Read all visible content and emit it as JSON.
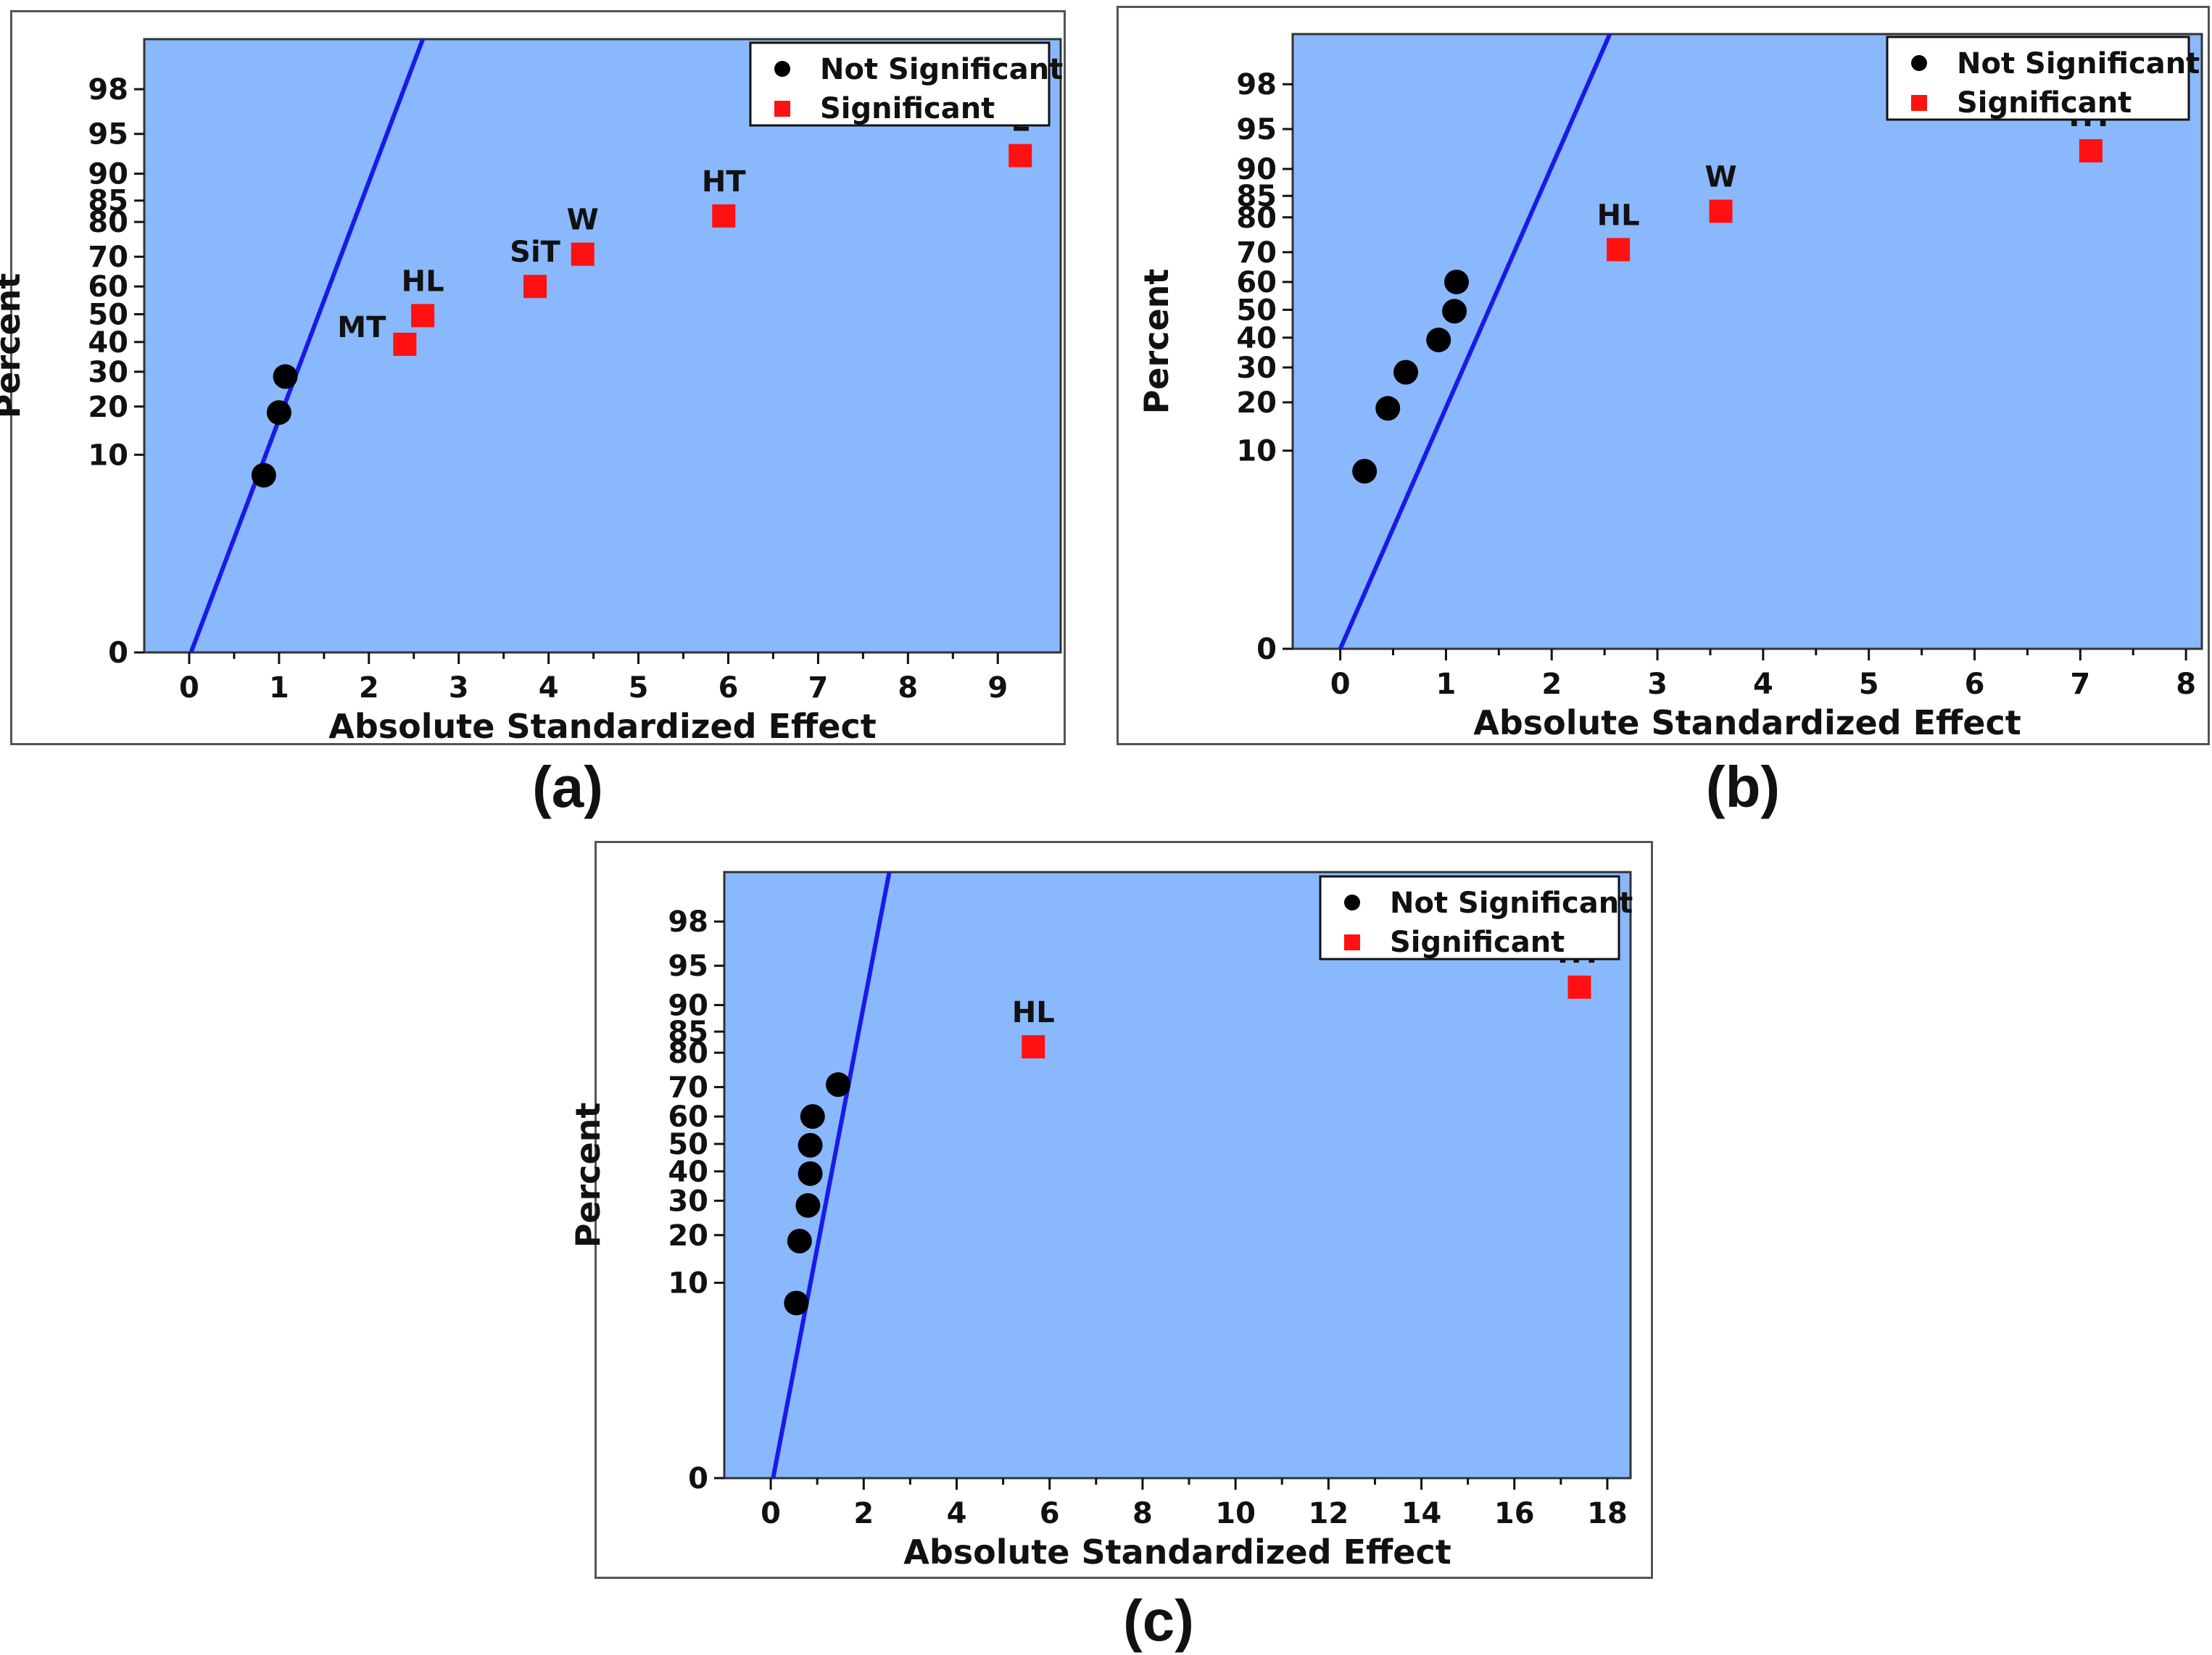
{
  "colors": {
    "plot_bg": "#8ab8fc",
    "line": "#1a1ae6",
    "not_significant": "#000000",
    "significant": "#ff1111"
  },
  "legend": {
    "not_significant": "Not Significant",
    "significant": "Significant"
  },
  "chart_data": [
    {
      "type": "scatter",
      "caption": "(a)",
      "xlabel": "Absolute Standardized Effect",
      "ylabel": "Percent",
      "xlim": [
        -0.5,
        9.7
      ],
      "xticks": [
        0,
        1,
        2,
        3,
        4,
        5,
        6,
        7,
        8,
        9
      ],
      "yticks": [
        0,
        10,
        20,
        30,
        40,
        50,
        60,
        70,
        80,
        85,
        90,
        95,
        98
      ],
      "reference_line": {
        "x_at_0": 0.02,
        "x_at_top": 2.6
      },
      "not_significant": [
        {
          "x": 0.83,
          "y": 7.1
        },
        {
          "x": 1.0,
          "y": 18.5
        },
        {
          "x": 1.07,
          "y": 28.5
        }
      ],
      "significant": [
        {
          "label": "MT",
          "x": 2.4,
          "y": 39.2
        },
        {
          "label": "HL",
          "x": 2.6,
          "y": 49.5
        },
        {
          "label": "SiT",
          "x": 3.85,
          "y": 60
        },
        {
          "label": "W",
          "x": 4.38,
          "y": 70.8
        },
        {
          "label": "HT",
          "x": 5.95,
          "y": 81.5
        },
        {
          "label": "L",
          "x": 9.25,
          "y": 92.6
        }
      ]
    },
    {
      "type": "scatter",
      "caption": "(b)",
      "xlabel": "Absolute Standardized Effect",
      "ylabel": "Percent",
      "xlim": [
        -0.45,
        8.15
      ],
      "xticks": [
        0,
        1,
        2,
        3,
        4,
        5,
        6,
        7,
        8
      ],
      "yticks": [
        0,
        10,
        20,
        30,
        40,
        50,
        60,
        70,
        80,
        85,
        90,
        95,
        98
      ],
      "reference_line": {
        "x_at_0": 0.0,
        "x_at_top": 2.55
      },
      "not_significant": [
        {
          "x": 0.23,
          "y": 7.1
        },
        {
          "x": 0.45,
          "y": 18.5
        },
        {
          "x": 0.62,
          "y": 28.5
        },
        {
          "x": 0.93,
          "y": 39.2
        },
        {
          "x": 1.08,
          "y": 49.5
        },
        {
          "x": 1.1,
          "y": 60
        }
      ],
      "significant": [
        {
          "label": "HL",
          "x": 2.63,
          "y": 70.8
        },
        {
          "label": "W",
          "x": 3.6,
          "y": 81.5
        },
        {
          "label": "HT",
          "x": 7.1,
          "y": 92.6
        }
      ]
    },
    {
      "type": "scatter",
      "caption": "(c)",
      "xlabel": "Absolute Standardized Effect",
      "ylabel": "Percent",
      "xlim": [
        -1.0,
        18.5
      ],
      "xticks": [
        0,
        2,
        4,
        6,
        8,
        10,
        12,
        14,
        16,
        18
      ],
      "yticks": [
        0,
        10,
        20,
        30,
        40,
        50,
        60,
        70,
        80,
        85,
        90,
        95,
        98
      ],
      "reference_line": {
        "x_at_0": 0.05,
        "x_at_top": 2.55
      },
      "not_significant": [
        {
          "x": 0.55,
          "y": 7.1
        },
        {
          "x": 0.62,
          "y": 18.5
        },
        {
          "x": 0.8,
          "y": 28.5
        },
        {
          "x": 0.85,
          "y": 39.2
        },
        {
          "x": 0.85,
          "y": 49.5
        },
        {
          "x": 0.9,
          "y": 60
        },
        {
          "x": 1.45,
          "y": 70.8
        }
      ],
      "significant": [
        {
          "label": "HL",
          "x": 5.65,
          "y": 81.5
        },
        {
          "label": "HT",
          "x": 17.4,
          "y": 92.6
        }
      ]
    }
  ]
}
